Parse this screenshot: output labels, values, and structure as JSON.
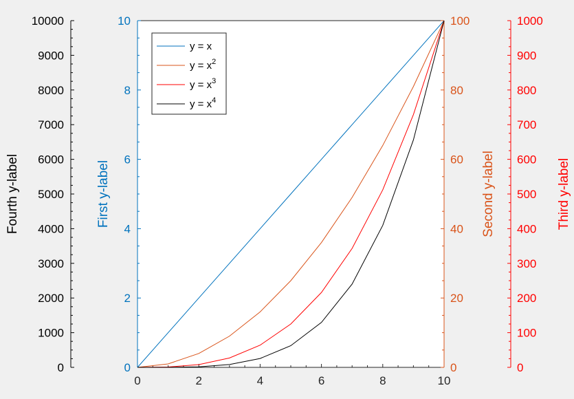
{
  "chart_data": {
    "type": "line",
    "x": [
      0,
      1,
      2,
      3,
      4,
      5,
      6,
      7,
      8,
      9,
      10
    ],
    "xlim": [
      0,
      10
    ],
    "x_ticks": [
      0,
      2,
      4,
      6,
      8,
      10
    ],
    "series": [
      {
        "name": "y = x",
        "legend_base": "y = x",
        "legend_sup": "",
        "color": "#0072bd",
        "axis": "first",
        "values": [
          0,
          1,
          2,
          3,
          4,
          5,
          6,
          7,
          8,
          9,
          10
        ]
      },
      {
        "name": "y = x^2",
        "legend_base": "y = x",
        "legend_sup": "2",
        "color": "#d95319",
        "axis": "second",
        "values": [
          0,
          1,
          4,
          9,
          16,
          25,
          36,
          49,
          64,
          81,
          100
        ]
      },
      {
        "name": "y = x^3",
        "legend_base": "y = x",
        "legend_sup": "3",
        "color": "#ff0000",
        "axis": "third",
        "values": [
          0,
          1,
          8,
          27,
          64,
          125,
          216,
          343,
          512,
          729,
          1000
        ]
      },
      {
        "name": "y = x^4",
        "legend_base": "y = x",
        "legend_sup": "4",
        "color": "#000000",
        "axis": "fourth",
        "values": [
          0,
          1,
          16,
          81,
          256,
          625,
          1296,
          2401,
          4096,
          6561,
          10000
        ]
      }
    ],
    "axes": {
      "first": {
        "label": "First y-label",
        "color": "#0072bd",
        "ylim": [
          0,
          10
        ],
        "ticks": [
          0,
          2,
          4,
          6,
          8,
          10
        ],
        "side": "left"
      },
      "second": {
        "label": "Second y-label",
        "color": "#d95319",
        "ylim": [
          0,
          100
        ],
        "ticks": [
          0,
          20,
          40,
          60,
          80,
          100
        ],
        "side": "right"
      },
      "third": {
        "label": "Third y-label",
        "color": "#ff0000",
        "ylim": [
          0,
          1000
        ],
        "ticks": [
          0,
          100,
          200,
          300,
          400,
          500,
          600,
          700,
          800,
          900,
          1000
        ],
        "side": "right"
      },
      "fourth": {
        "label": "Fourth y-label",
        "color": "#000000",
        "ylim": [
          0,
          10000
        ],
        "ticks": [
          0,
          1000,
          2000,
          3000,
          4000,
          5000,
          6000,
          7000,
          8000,
          9000,
          10000
        ],
        "side": "left"
      }
    },
    "legend_position": "top-left",
    "grid": false
  }
}
